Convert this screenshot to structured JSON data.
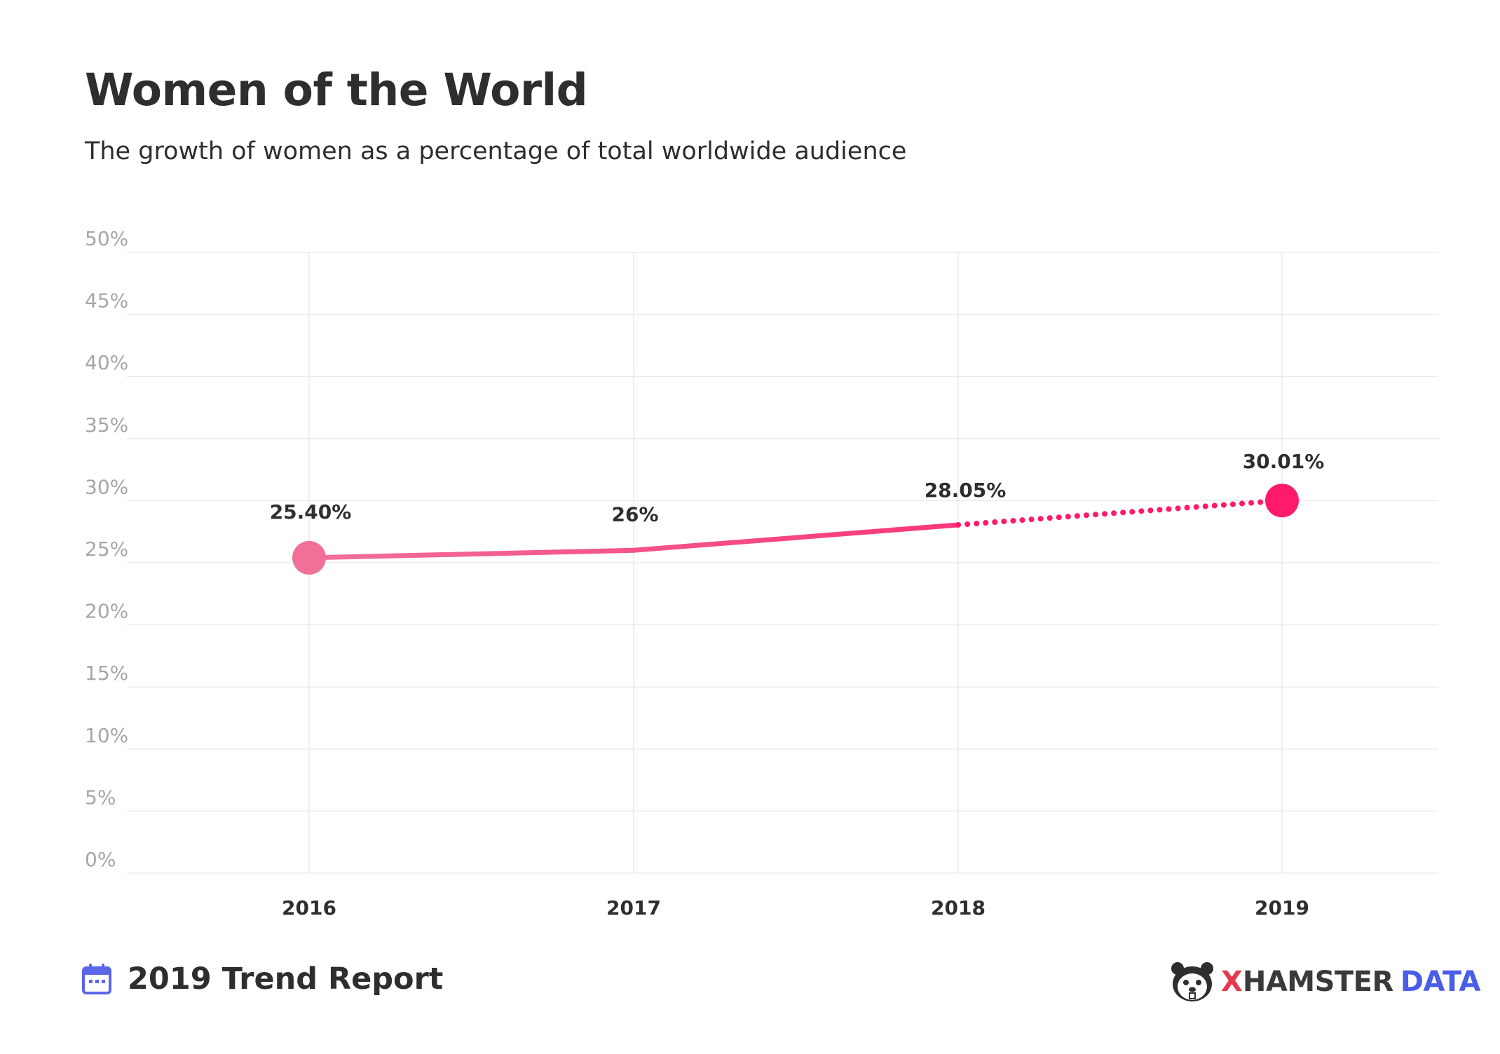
{
  "header": {
    "title": "Women of the World",
    "subtitle": "The growth of women as a percentage of total worldwide audience"
  },
  "footer": {
    "report_label": "2019 Trend Report",
    "brand_x": "X",
    "brand_name": "HAMSTER",
    "brand_suffix": "DATA"
  },
  "colors": {
    "line_start": "#f07098",
    "line_end": "#ff1a6b",
    "grid": "#ebebeb",
    "tick_text": "#a6a6a6",
    "label_text": "#2e2e2e",
    "calendar_icon": "#5b66e8"
  },
  "icons": {
    "report_icon": "calendar-icon",
    "brand_icon": "hamster-logo-icon"
  },
  "chart_data": {
    "type": "line",
    "title": "Women of the World",
    "subtitle": "The growth of women as a percentage of total worldwide audience",
    "categories": [
      "2016",
      "2017",
      "2018",
      "2019"
    ],
    "values": [
      25.4,
      26,
      28.05,
      30.01
    ],
    "data_labels": [
      "25.40%",
      "26%",
      "28.05%",
      "30.01%"
    ],
    "line_style": [
      "solid",
      "solid",
      "dotted"
    ],
    "ylim": [
      0,
      50
    ],
    "yticks": [
      0,
      5,
      10,
      15,
      20,
      25,
      30,
      35,
      40,
      45,
      50
    ],
    "ytick_labels": [
      "0%",
      "5%",
      "10%",
      "15%",
      "20%",
      "25%",
      "30%",
      "35%",
      "40%",
      "45%",
      "50%"
    ],
    "xlabel": "",
    "ylabel": "",
    "grid": true,
    "markers": [
      "2016",
      "2019"
    ]
  }
}
